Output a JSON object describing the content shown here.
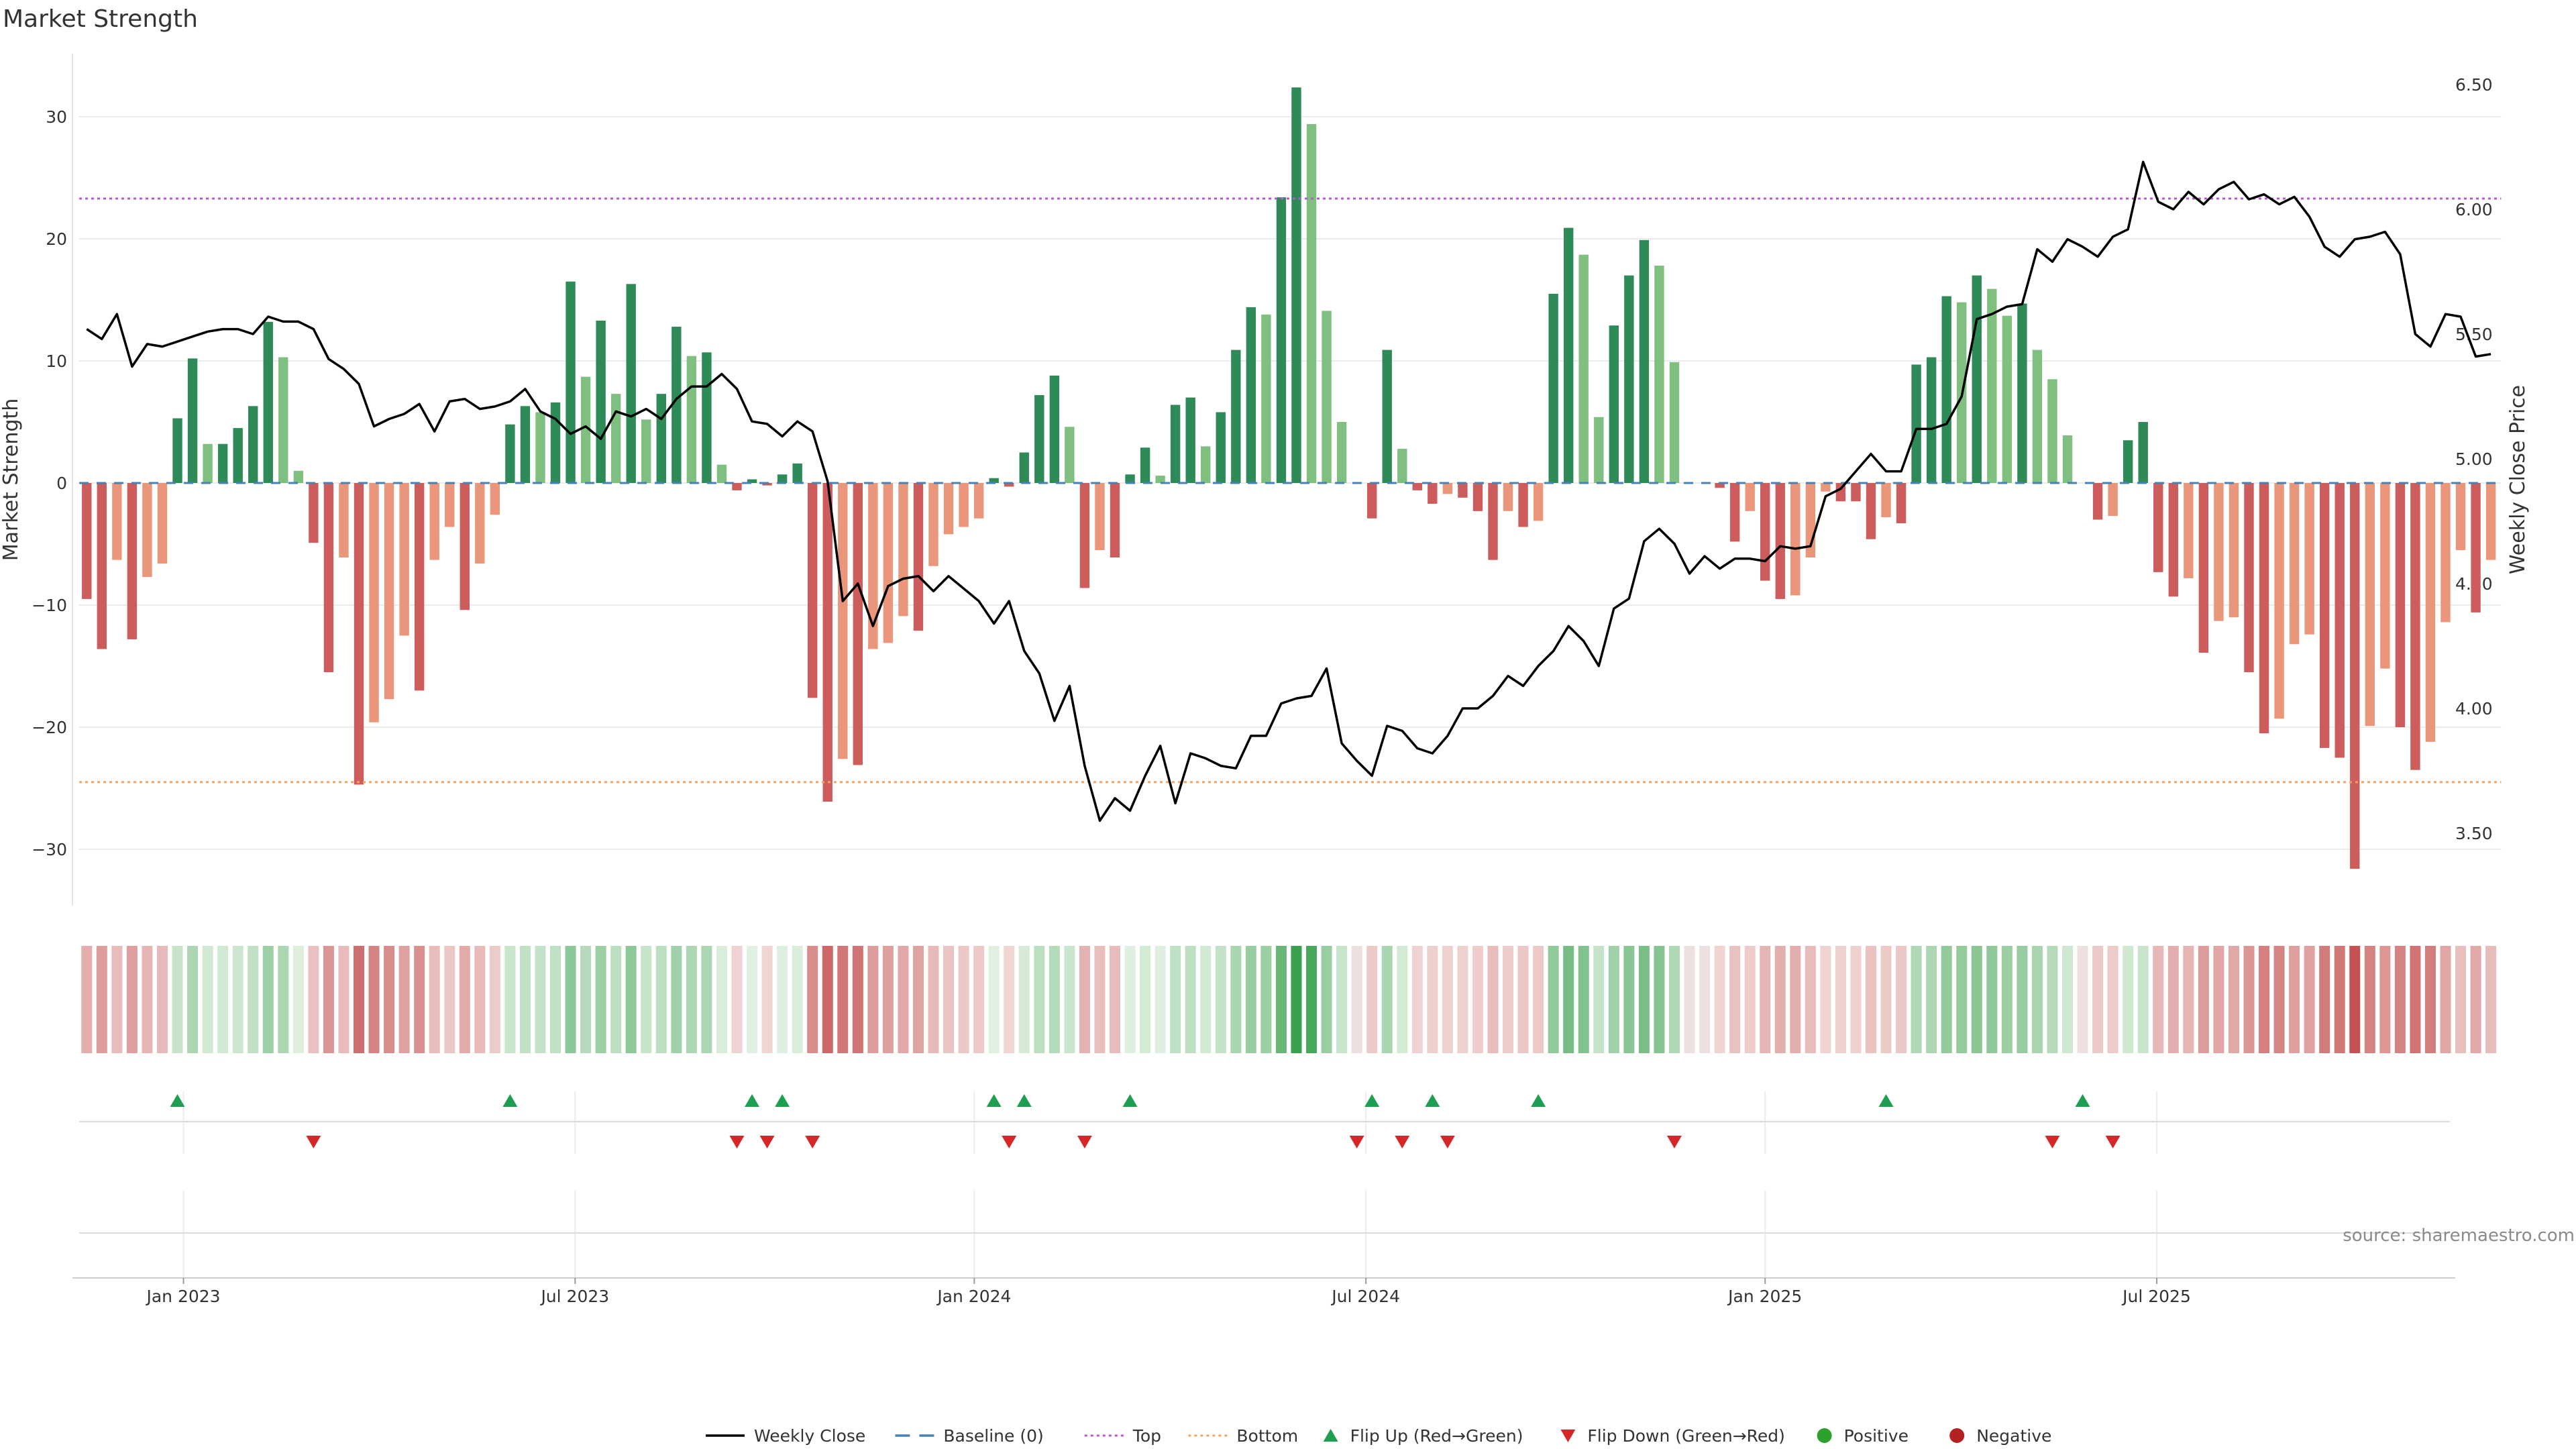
{
  "chart_data": {
    "type": "bar",
    "title": "Market Strength",
    "ylabel_left": "Market Strength",
    "ylabel_right": "Weekly Close Price",
    "source": "source: sharemaestro.com",
    "ylim_left": [
      -35,
      35
    ],
    "ylim_right": [
      3.2,
      6.65
    ],
    "yticks_left": [
      30,
      20,
      10,
      0,
      -10,
      -20,
      -30
    ],
    "yticks_left_labels": [
      "30",
      "20",
      "10",
      "0",
      "−10",
      "−20",
      "−30"
    ],
    "yticks_right": [
      6.5,
      6.0,
      5.5,
      5.0,
      4.5,
      4.0,
      3.5
    ],
    "yticks_right_labels": [
      "6.50",
      "6.00",
      "5.50",
      "5.00",
      "4.50",
      "4.00",
      "3.50"
    ],
    "x_ticks": [
      {
        "index": 6.9,
        "label": "Jan 2023"
      },
      {
        "index": 32.8,
        "label": "Jul 2023"
      },
      {
        "index": 59.2,
        "label": "Jan 2024"
      },
      {
        "index": 85.1,
        "label": "Jul 2024"
      },
      {
        "index": 111.5,
        "label": "Jan 2025"
      },
      {
        "index": 137.4,
        "label": "Jul 2025"
      }
    ],
    "top_level": 23.3,
    "bottom_level": -24.5,
    "strength": [
      -9.5,
      -13.6,
      -6.3,
      -12.8,
      -7.7,
      -6.6,
      5.3,
      10.2,
      3.2,
      3.2,
      4.5,
      6.3,
      13.2,
      10.3,
      1.0,
      -4.9,
      -15.5,
      -6.1,
      -24.7,
      -19.6,
      -17.7,
      -12.5,
      -17.0,
      -6.3,
      -3.6,
      -10.4,
      -6.6,
      -2.6,
      4.8,
      6.3,
      5.8,
      6.6,
      16.5,
      8.7,
      13.3,
      7.3,
      16.3,
      5.2,
      7.3,
      12.8,
      10.4,
      10.7,
      1.5,
      -0.6,
      0.3,
      -0.2,
      0.7,
      1.6,
      -17.6,
      -26.1,
      -22.6,
      -23.1,
      -13.6,
      -13.1,
      -10.9,
      -12.1,
      -6.8,
      -4.2,
      -3.6,
      -2.9,
      0.4,
      -0.3,
      2.5,
      7.2,
      8.8,
      4.6,
      -8.6,
      -5.5,
      -6.1,
      0.7,
      2.9,
      0.6,
      6.4,
      7.0,
      3.0,
      5.8,
      10.9,
      14.4,
      13.8,
      23.4,
      32.4,
      29.4,
      14.1,
      5.0,
      0,
      -2.9,
      10.9,
      2.8,
      -0.6,
      -1.7,
      -0.9,
      -1.2,
      -2.3,
      -6.3,
      -2.3,
      -3.6,
      -3.1,
      15.5,
      20.9,
      18.7,
      5.4,
      12.9,
      17.0,
      19.9,
      17.8,
      9.9,
      0,
      0,
      -0.4,
      -4.8,
      -2.3,
      -8.0,
      -9.5,
      -9.2,
      -6.1,
      -0.7,
      -1.5,
      -1.5,
      -4.6,
      -2.8,
      -3.3,
      9.7,
      10.3,
      15.3,
      14.8,
      17.0,
      15.9,
      13.7,
      14.7,
      10.9,
      8.5,
      3.9,
      0,
      -3.0,
      -2.7,
      3.5,
      5.0,
      -7.3,
      -9.3,
      -7.8,
      -13.9,
      -11.3,
      -11.0,
      -15.5,
      -20.5,
      -19.3,
      -13.2,
      -12.4,
      -21.7,
      -22.5,
      -31.6,
      -19.9,
      -15.2,
      -20.0,
      -23.5,
      -21.2,
      -11.4,
      -5.5,
      -10.6,
      -6.3
    ],
    "weekly_close": [
      5.52,
      5.48,
      5.58,
      5.37,
      5.46,
      5.45,
      5.47,
      5.49,
      5.51,
      5.52,
      5.52,
      5.5,
      5.57,
      5.55,
      5.55,
      5.52,
      5.4,
      5.36,
      5.3,
      5.13,
      5.16,
      5.18,
      5.22,
      5.11,
      5.23,
      5.24,
      5.2,
      5.21,
      5.23,
      5.28,
      5.19,
      5.16,
      5.1,
      5.13,
      5.08,
      5.19,
      5.17,
      5.2,
      5.16,
      5.24,
      5.29,
      5.29,
      5.34,
      5.28,
      5.15,
      5.14,
      5.09,
      5.15,
      5.11,
      4.91,
      4.43,
      4.5,
      4.33,
      4.49,
      4.52,
      4.53,
      4.47,
      4.53,
      4.48,
      4.43,
      4.34,
      4.43,
      4.23,
      4.14,
      3.95,
      4.09,
      3.77,
      3.55,
      3.64,
      3.59,
      3.73,
      3.85,
      3.62,
      3.82,
      3.8,
      3.77,
      3.76,
      3.89,
      3.89,
      4.02,
      4.04,
      4.05,
      4.16,
      3.86,
      3.79,
      3.73,
      3.93,
      3.91,
      3.84,
      3.82,
      3.89,
      4.0,
      4.0,
      4.05,
      4.13,
      4.09,
      4.17,
      4.23,
      4.33,
      4.27,
      4.17,
      4.4,
      4.44,
      4.67,
      4.72,
      4.66,
      4.54,
      4.61,
      4.56,
      4.6,
      4.6,
      4.59,
      4.65,
      4.64,
      4.65,
      4.85,
      4.88,
      4.95,
      5.02,
      4.95,
      4.95,
      5.12,
      5.12,
      5.14,
      5.25,
      5.56,
      5.58,
      5.61,
      5.62,
      5.84,
      5.79,
      5.88,
      5.85,
      5.81,
      5.89,
      5.92,
      6.19,
      6.03,
      6.0,
      6.07,
      6.02,
      6.08,
      6.11,
      6.04,
      6.06,
      6.02,
      6.05,
      5.97,
      5.85,
      5.81,
      5.88,
      5.89,
      5.91,
      5.82,
      5.5,
      5.45,
      5.58,
      5.57,
      5.41,
      5.42
    ],
    "flip_up": [
      6,
      28,
      44,
      46,
      60,
      62,
      69,
      85,
      89,
      96,
      119,
      132
    ],
    "flip_down": [
      15,
      43,
      45,
      48,
      61,
      66,
      84,
      87,
      90,
      105,
      130,
      134
    ],
    "legend": [
      {
        "key": "close",
        "label": "Weekly Close"
      },
      {
        "key": "baseline",
        "label": "Baseline (0)"
      },
      {
        "key": "top",
        "label": "Top"
      },
      {
        "key": "bottom",
        "label": "Bottom"
      },
      {
        "key": "up",
        "label": "Flip Up (Red→Green)"
      },
      {
        "key": "down",
        "label": "Flip Down (Green→Red)"
      },
      {
        "key": "pos",
        "label": "Positive"
      },
      {
        "key": "neg",
        "label": "Negative"
      }
    ]
  },
  "colors": {
    "strong_green": "#2e8b57",
    "light_green": "#7fbf7f",
    "strong_red": "#cd5c5c",
    "light_red": "#e9967a",
    "close_line": "#000000",
    "baseline": "#4682b4",
    "top": "#ba55d3",
    "bottom": "#f4a460",
    "flip_up": "#1e9e50",
    "flip_down": "#d62728",
    "positive": "#2ca02c",
    "negative": "#b22222"
  }
}
